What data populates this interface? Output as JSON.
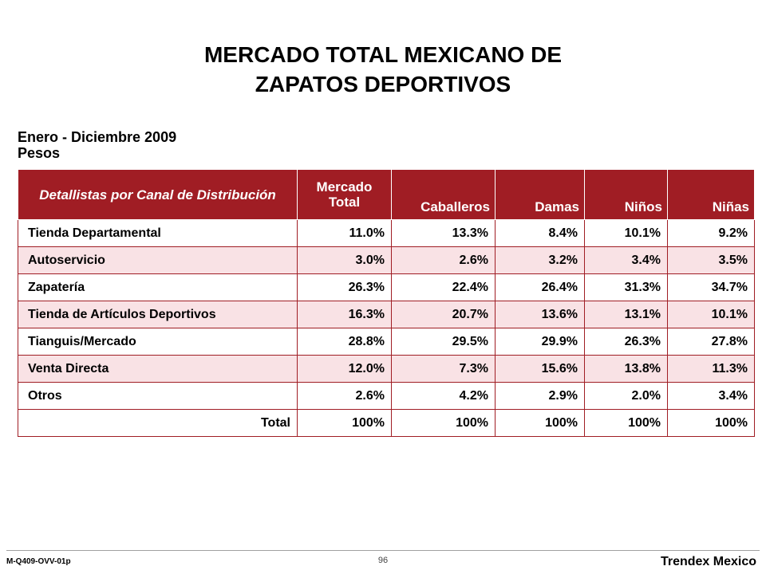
{
  "title": {
    "line1": "MERCADO TOTAL MEXICANO DE",
    "line2": "ZAPATOS DEPORTIVOS"
  },
  "subtitle": {
    "period": "Enero - Diciembre 2009",
    "unit": "Pesos"
  },
  "table": {
    "headers": {
      "channel": "Detallistas por Canal de Distribución",
      "total": "Mercado Total",
      "men": "Caballeros",
      "women": "Damas",
      "boys": "Niños",
      "girls": "Niñas"
    },
    "rows": [
      {
        "label": "Tienda Departamental",
        "values": [
          "11.0%",
          "13.3%",
          "8.4%",
          "10.1%",
          "9.2%"
        ]
      },
      {
        "label": "Autoservicio",
        "values": [
          "3.0%",
          "2.6%",
          "3.2%",
          "3.4%",
          "3.5%"
        ]
      },
      {
        "label": "Zapatería",
        "values": [
          "26.3%",
          "22.4%",
          "26.4%",
          "31.3%",
          "34.7%"
        ]
      },
      {
        "label": "Tienda de Artículos Deportivos",
        "values": [
          "16.3%",
          "20.7%",
          "13.6%",
          "13.1%",
          "10.1%"
        ]
      },
      {
        "label": "Tianguis/Mercado",
        "values": [
          "28.8%",
          "29.5%",
          "29.9%",
          "26.3%",
          "27.8%"
        ]
      },
      {
        "label": "Venta Directa",
        "values": [
          "12.0%",
          "7.3%",
          "15.6%",
          "13.8%",
          "11.3%"
        ]
      },
      {
        "label": "Otros",
        "values": [
          "2.6%",
          "4.2%",
          "2.9%",
          "2.0%",
          "3.4%"
        ]
      }
    ],
    "total": {
      "label": "Total",
      "values": [
        "100%",
        "100%",
        "100%",
        "100%",
        "100%"
      ]
    }
  },
  "footer": {
    "code": "M-Q409-OVV-01p",
    "page": "96",
    "brand": "Trendex Mexico"
  },
  "colors": {
    "header_bg": "#a01d24",
    "row_alt_bg": "#f9e2e5"
  }
}
